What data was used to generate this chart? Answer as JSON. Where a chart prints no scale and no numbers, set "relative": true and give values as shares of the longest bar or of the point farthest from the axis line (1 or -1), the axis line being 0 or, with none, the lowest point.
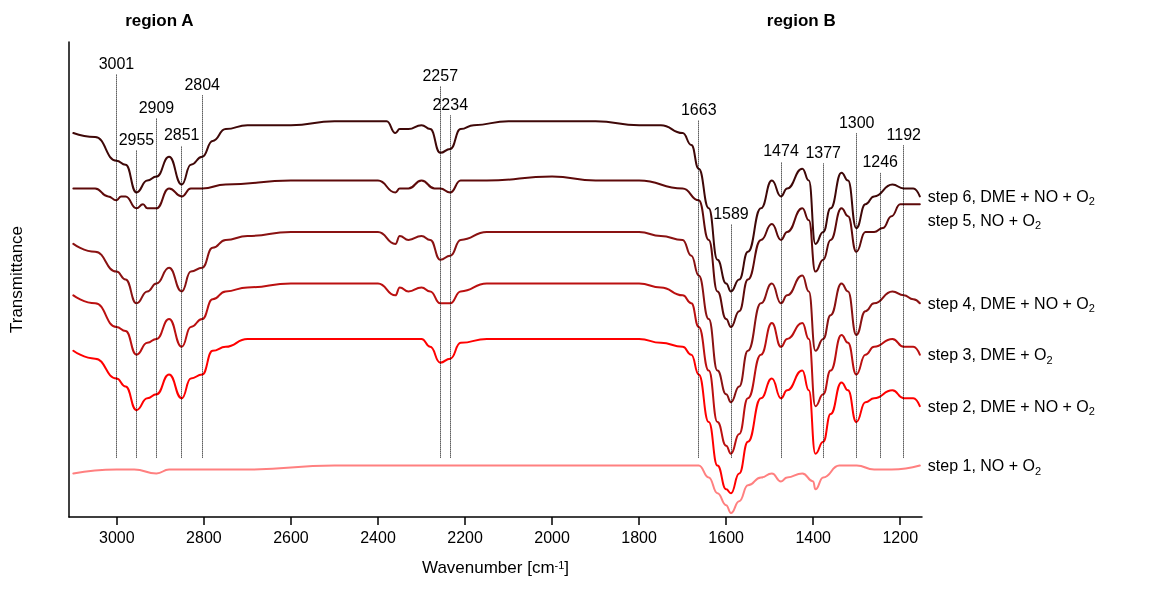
{
  "chart_data": {
    "type": "line",
    "relative": true,
    "xlabel": "Wavenumber [cm$^{-1}$]",
    "ylabel": "Transmittance",
    "xlim": [
      3110,
      1150
    ],
    "xticks": [
      3000,
      2800,
      2600,
      2400,
      2200,
      2000,
      1800,
      1600,
      1400,
      1200
    ],
    "grid": false,
    "legend": false,
    "line_style": "solid",
    "annotations": [
      "region A",
      "region B"
    ],
    "ref_lines": [
      {
        "axis": "x",
        "value": 3001,
        "label": "3001",
        "color": "#000000",
        "line_style": "dotted"
      },
      {
        "axis": "x",
        "value": 2955,
        "label": "2955",
        "color": "#000000",
        "line_style": "dotted"
      },
      {
        "axis": "x",
        "value": 2909,
        "label": "2909",
        "color": "#000000",
        "line_style": "dotted"
      },
      {
        "axis": "x",
        "value": 2851,
        "label": "2851",
        "color": "#000000",
        "line_style": "dotted"
      },
      {
        "axis": "x",
        "value": 2804,
        "label": "2804",
        "color": "#000000",
        "line_style": "dotted"
      },
      {
        "axis": "x",
        "value": 2257,
        "label": "2257",
        "color": "#000000",
        "line_style": "dotted"
      },
      {
        "axis": "x",
        "value": 2234,
        "label": "2234",
        "color": "#000000",
        "line_style": "dotted"
      },
      {
        "axis": "x",
        "value": 1663,
        "label": "1663",
        "color": "#000000",
        "line_style": "dotted"
      },
      {
        "axis": "x",
        "value": 1589,
        "label": "1589",
        "color": "#000000",
        "line_style": "dotted"
      },
      {
        "axis": "x",
        "value": 1474,
        "label": "1474",
        "color": "#000000",
        "line_style": "dotted"
      },
      {
        "axis": "x",
        "value": 1377,
        "label": "1377",
        "color": "#000000",
        "line_style": "dotted"
      },
      {
        "axis": "x",
        "value": 1300,
        "label": "1300",
        "color": "#000000",
        "line_style": "dotted"
      },
      {
        "axis": "x",
        "value": 1246,
        "label": "1246",
        "color": "#000000",
        "line_style": "dotted"
      },
      {
        "axis": "x",
        "value": 1192,
        "label": "1192",
        "color": "#000000",
        "line_style": "dotted"
      }
    ],
    "series": [
      {
        "name": "step 6, DME + NO + O$_{2}$",
        "color": "#3f0808",
        "x": [
          3100,
          3050,
          3001,
          2980,
          2955,
          2930,
          2909,
          2880,
          2851,
          2830,
          2804,
          2780,
          2750,
          2700,
          2600,
          2500,
          2400,
          2380,
          2360,
          2350,
          2330,
          2300,
          2280,
          2257,
          2234,
          2210,
          2180,
          2100,
          2000,
          1900,
          1800,
          1750,
          1700,
          1680,
          1663,
          1640,
          1620,
          1600,
          1589,
          1570,
          1550,
          1520,
          1495,
          1474,
          1460,
          1425,
          1410,
          1395,
          1377,
          1360,
          1335,
          1320,
          1301,
          1280,
          1260,
          1218,
          1192,
          1170,
          1155
        ],
        "values": [
          0.97,
          0.96,
          0.9,
          0.89,
          0.82,
          0.85,
          0.86,
          0.91,
          0.84,
          0.89,
          0.91,
          0.95,
          0.98,
          0.99,
          0.99,
          1.0,
          1.0,
          1.0,
          0.97,
          0.98,
          0.98,
          0.99,
          0.98,
          0.92,
          0.93,
          0.98,
          0.99,
          1.0,
          1.0,
          1.0,
          0.99,
          0.99,
          0.97,
          0.94,
          0.88,
          0.78,
          0.65,
          0.59,
          0.57,
          0.6,
          0.67,
          0.78,
          0.85,
          0.81,
          0.83,
          0.88,
          0.85,
          0.69,
          0.72,
          0.78,
          0.87,
          0.85,
          0.73,
          0.79,
          0.81,
          0.84,
          0.83,
          0.83,
          0.81
        ]
      },
      {
        "name": "step 5, NO + O$_{2}$",
        "color": "#5e0a0a",
        "x": [
          3100,
          3050,
          3020,
          3001,
          2990,
          2980,
          2955,
          2940,
          2930,
          2909,
          2880,
          2851,
          2830,
          2804,
          2750,
          2600,
          2400,
          2360,
          2350,
          2330,
          2300,
          2270,
          2257,
          2234,
          2210,
          2150,
          2000,
          1900,
          1800,
          1700,
          1663,
          1640,
          1620,
          1600,
          1589,
          1570,
          1550,
          1520,
          1495,
          1474,
          1460,
          1425,
          1410,
          1395,
          1377,
          1360,
          1335,
          1320,
          1301,
          1280,
          1260,
          1240,
          1220,
          1200,
          1170,
          1155
        ],
        "values": [
          0.83,
          0.83,
          0.81,
          0.8,
          0.81,
          0.81,
          0.78,
          0.79,
          0.78,
          0.78,
          0.83,
          0.81,
          0.83,
          0.83,
          0.84,
          0.85,
          0.85,
          0.82,
          0.83,
          0.83,
          0.85,
          0.83,
          0.83,
          0.82,
          0.85,
          0.85,
          0.86,
          0.85,
          0.85,
          0.83,
          0.8,
          0.7,
          0.57,
          0.5,
          0.48,
          0.52,
          0.6,
          0.7,
          0.74,
          0.7,
          0.72,
          0.78,
          0.75,
          0.62,
          0.65,
          0.7,
          0.78,
          0.76,
          0.67,
          0.72,
          0.72,
          0.73,
          0.76,
          0.79,
          0.79,
          0.79
        ]
      },
      {
        "name": "step 4, DME + NO + O$_{2}$",
        "color": "#8a1212",
        "x": [
          3100,
          3050,
          3001,
          2980,
          2955,
          2930,
          2909,
          2880,
          2851,
          2830,
          2804,
          2780,
          2750,
          2700,
          2600,
          2400,
          2360,
          2350,
          2330,
          2300,
          2280,
          2257,
          2234,
          2210,
          2150,
          2000,
          1900,
          1800,
          1750,
          1700,
          1680,
          1663,
          1640,
          1620,
          1600,
          1589,
          1570,
          1550,
          1520,
          1495,
          1474,
          1460,
          1425,
          1410,
          1395,
          1377,
          1360,
          1335,
          1320,
          1301,
          1280,
          1260,
          1218,
          1192,
          1170,
          1155
        ],
        "values": [
          0.69,
          0.67,
          0.62,
          0.6,
          0.54,
          0.57,
          0.59,
          0.63,
          0.57,
          0.62,
          0.63,
          0.68,
          0.7,
          0.71,
          0.72,
          0.72,
          0.69,
          0.71,
          0.7,
          0.71,
          0.7,
          0.65,
          0.66,
          0.7,
          0.72,
          0.72,
          0.72,
          0.72,
          0.71,
          0.7,
          0.66,
          0.61,
          0.5,
          0.37,
          0.31,
          0.29,
          0.33,
          0.42,
          0.54,
          0.59,
          0.54,
          0.56,
          0.61,
          0.57,
          0.42,
          0.45,
          0.51,
          0.59,
          0.57,
          0.46,
          0.52,
          0.54,
          0.57,
          0.56,
          0.55,
          0.54
        ]
      },
      {
        "name": "step 3, DME + O$_{2}$",
        "color": "#bb1010",
        "x": [
          3100,
          3050,
          3001,
          2980,
          2955,
          2930,
          2909,
          2880,
          2851,
          2830,
          2804,
          2780,
          2750,
          2700,
          2600,
          2400,
          2360,
          2350,
          2330,
          2300,
          2280,
          2257,
          2234,
          2210,
          2150,
          2000,
          1900,
          1800,
          1750,
          1700,
          1680,
          1663,
          1640,
          1620,
          1600,
          1589,
          1570,
          1550,
          1520,
          1495,
          1474,
          1460,
          1425,
          1410,
          1395,
          1377,
          1360,
          1335,
          1320,
          1301,
          1280,
          1260,
          1218,
          1192,
          1170,
          1155
        ],
        "values": [
          0.56,
          0.54,
          0.48,
          0.47,
          0.41,
          0.44,
          0.45,
          0.5,
          0.43,
          0.48,
          0.5,
          0.55,
          0.57,
          0.58,
          0.59,
          0.59,
          0.56,
          0.58,
          0.57,
          0.58,
          0.57,
          0.54,
          0.54,
          0.57,
          0.59,
          0.59,
          0.59,
          0.59,
          0.58,
          0.56,
          0.54,
          0.48,
          0.37,
          0.24,
          0.18,
          0.16,
          0.21,
          0.3,
          0.41,
          0.49,
          0.43,
          0.45,
          0.49,
          0.45,
          0.28,
          0.31,
          0.37,
          0.46,
          0.44,
          0.36,
          0.41,
          0.43,
          0.45,
          0.43,
          0.43,
          0.41
        ]
      },
      {
        "name": "step 2, DME + NO + O$_{2}$",
        "color": "#ff0000",
        "x": [
          3100,
          3050,
          3001,
          2980,
          2955,
          2930,
          2909,
          2880,
          2851,
          2830,
          2804,
          2780,
          2750,
          2700,
          2600,
          2400,
          2330,
          2300,
          2280,
          2257,
          2234,
          2210,
          2150,
          2000,
          1900,
          1800,
          1750,
          1700,
          1680,
          1663,
          1640,
          1620,
          1600,
          1589,
          1570,
          1550,
          1520,
          1495,
          1474,
          1460,
          1425,
          1410,
          1395,
          1377,
          1360,
          1335,
          1320,
          1301,
          1280,
          1260,
          1218,
          1192,
          1170,
          1155
        ],
        "values": [
          0.42,
          0.4,
          0.35,
          0.33,
          0.27,
          0.3,
          0.31,
          0.36,
          0.3,
          0.35,
          0.36,
          0.42,
          0.43,
          0.45,
          0.45,
          0.45,
          0.45,
          0.45,
          0.43,
          0.39,
          0.4,
          0.44,
          0.45,
          0.45,
          0.45,
          0.45,
          0.44,
          0.43,
          0.41,
          0.36,
          0.24,
          0.13,
          0.07,
          0.06,
          0.11,
          0.19,
          0.3,
          0.35,
          0.3,
          0.32,
          0.37,
          0.32,
          0.16,
          0.19,
          0.26,
          0.34,
          0.32,
          0.24,
          0.29,
          0.3,
          0.32,
          0.3,
          0.3,
          0.28
        ]
      },
      {
        "name": "step 1, NO + O$_{2}$",
        "color": "#ff8080",
        "x": [
          3100,
          3001,
          2960,
          2909,
          2880,
          2700,
          2500,
          2300,
          2100,
          1900,
          1750,
          1700,
          1663,
          1640,
          1620,
          1600,
          1589,
          1570,
          1550,
          1520,
          1495,
          1474,
          1460,
          1425,
          1400,
          1395,
          1377,
          1340,
          1300,
          1260,
          1220,
          1155
        ],
        "values": [
          0.11,
          0.12,
          0.12,
          0.11,
          0.12,
          0.12,
          0.13,
          0.13,
          0.13,
          0.13,
          0.13,
          0.13,
          0.13,
          0.1,
          0.06,
          0.03,
          0.01,
          0.04,
          0.08,
          0.1,
          0.11,
          0.09,
          0.1,
          0.11,
          0.09,
          0.07,
          0.1,
          0.13,
          0.13,
          0.12,
          0.12,
          0.13
        ]
      }
    ]
  }
}
